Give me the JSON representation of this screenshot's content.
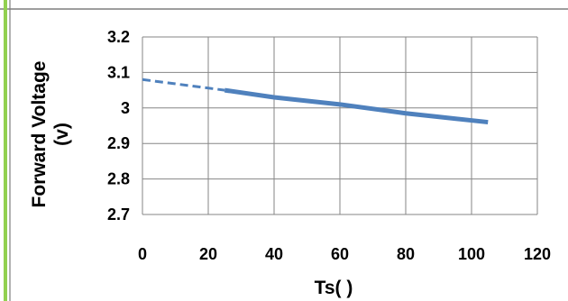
{
  "chart_data": {
    "type": "line",
    "title": "",
    "xlabel": "Ts(    )",
    "ylabel_line1": "Forward Voltage",
    "ylabel_line2": "(v)",
    "xlim": [
      0,
      120
    ],
    "ylim": [
      2.7,
      3.2
    ],
    "x_ticks": [
      "0",
      "20",
      "40",
      "60",
      "80",
      "100",
      "120"
    ],
    "y_ticks": [
      "2.7",
      "2.8",
      "2.9",
      "3",
      "3.1",
      "3.2"
    ],
    "grid": true,
    "legend": "none",
    "series": [
      {
        "style": "dashed",
        "color": "#4f81bd",
        "x": [
          0,
          25
        ],
        "y": [
          3.08,
          3.05
        ]
      },
      {
        "style": "solid",
        "color": "#4f81bd",
        "x": [
          25,
          40,
          60,
          80,
          105
        ],
        "y": [
          3.05,
          3.03,
          3.01,
          2.985,
          2.96
        ]
      }
    ]
  },
  "decor": {
    "frame_color": "#7f7f7f",
    "accent_color": "#92d050"
  }
}
